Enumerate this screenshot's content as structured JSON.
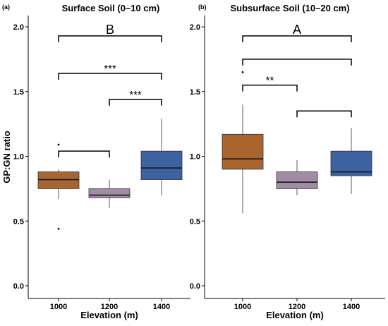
{
  "chart_data": [
    {
      "type": "boxplot",
      "panel_label": "(a)",
      "title": "Surface Soil (0–10 cm)",
      "xlabel": "Elevation (m)",
      "ylabel": "GP:GN ratio",
      "ylim": [
        0.0,
        2.0
      ],
      "yticks": [
        "0.0",
        "0.5",
        "1.0",
        "1.5",
        "2.0"
      ],
      "categories": [
        "1000",
        "1200",
        "1400"
      ],
      "boxes": [
        {
          "category": "1000",
          "color": "#A8652F",
          "whisker_low": 0.67,
          "q1": 0.75,
          "median": 0.82,
          "q3": 0.88,
          "whisker_high": 0.9,
          "outliers": [
            1.09,
            0.44
          ]
        },
        {
          "category": "1200",
          "color": "#A28BA5",
          "whisker_low": 0.6,
          "q1": 0.68,
          "median": 0.7,
          "q3": 0.75,
          "whisker_high": 0.82,
          "outliers": []
        },
        {
          "category": "1400",
          "color": "#3C629F",
          "whisker_low": 0.7,
          "q1": 0.82,
          "median": 0.91,
          "q3": 1.04,
          "whisker_high": 1.29,
          "outliers": []
        }
      ],
      "brackets": [
        {
          "from": "1000",
          "to": "1400",
          "y": 1.93,
          "label": "B",
          "kind": "letter"
        },
        {
          "from": "1000",
          "to": "1400",
          "y": 1.64,
          "label": "***",
          "kind": "sig"
        },
        {
          "from": "1200",
          "to": "1400",
          "y": 1.44,
          "label": "***",
          "kind": "sig"
        },
        {
          "from": "1000",
          "to": "1200",
          "y": 1.04,
          "label": "",
          "kind": "sig"
        }
      ]
    },
    {
      "type": "boxplot",
      "panel_label": "(b)",
      "title": "Subsurface Soil (10–20 cm)",
      "xlabel": "Elevation (m)",
      "ylabel": "",
      "ylim": [
        0.0,
        2.0
      ],
      "yticks": [
        "0.0",
        "0.5",
        "1.0",
        "1.5",
        "2.0"
      ],
      "categories": [
        "1000",
        "1200",
        "1400"
      ],
      "boxes": [
        {
          "category": "1000",
          "color": "#A8652F",
          "whisker_low": 0.56,
          "q1": 0.9,
          "median": 0.98,
          "q3": 1.17,
          "whisker_high": 1.4,
          "outliers": [
            1.65
          ]
        },
        {
          "category": "1200",
          "color": "#A28BA5",
          "whisker_low": 0.7,
          "q1": 0.75,
          "median": 0.8,
          "q3": 0.88,
          "whisker_high": 0.97,
          "outliers": []
        },
        {
          "category": "1400",
          "color": "#3C629F",
          "whisker_low": 0.71,
          "q1": 0.85,
          "median": 0.88,
          "q3": 1.04,
          "whisker_high": 1.22,
          "outliers": []
        }
      ],
      "brackets": [
        {
          "from": "1000",
          "to": "1400",
          "y": 1.93,
          "label": "A",
          "kind": "letter"
        },
        {
          "from": "1000",
          "to": "1400",
          "y": 1.75,
          "label": "",
          "kind": "sig"
        },
        {
          "from": "1000",
          "to": "1200",
          "y": 1.55,
          "label": "**",
          "kind": "sig"
        },
        {
          "from": "1200",
          "to": "1400",
          "y": 1.35,
          "label": "",
          "kind": "sig"
        }
      ]
    }
  ]
}
